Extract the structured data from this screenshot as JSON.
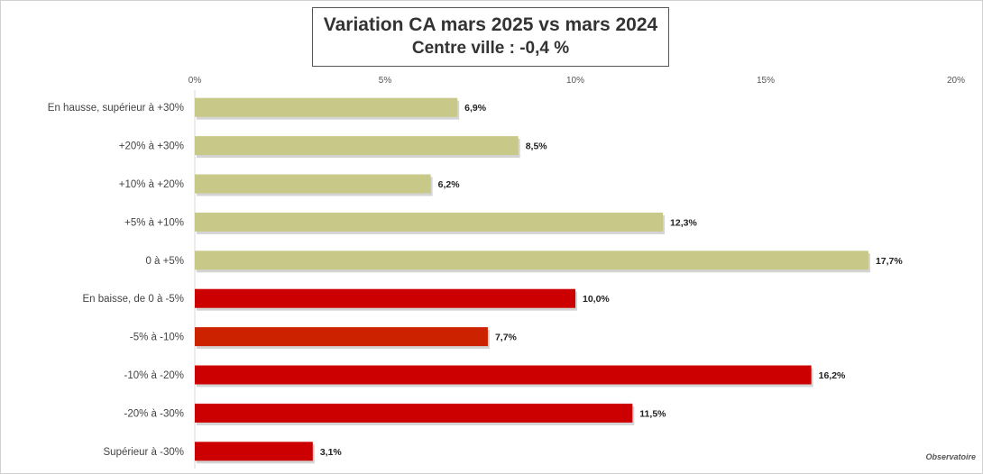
{
  "title": {
    "line1": "Variation CA  mars 2025 vs mars 2024",
    "line2": "Centre ville  : -0,4 %"
  },
  "watermark": "Observatoire",
  "chart_data": {
    "type": "bar",
    "orientation": "horizontal",
    "categories": [
      "En hausse, supérieur à +30%",
      "+20% à +30%",
      "+10% à +20%",
      "+5% à +10%",
      "0 à +5%",
      "En baisse, de 0 à -5%",
      "-5% à -10%",
      "-10% à -20%",
      "-20% à -30%",
      "Supérieur à -30%"
    ],
    "values": [
      6.9,
      8.5,
      6.2,
      12.3,
      17.7,
      10.0,
      7.7,
      16.2,
      11.5,
      3.1
    ],
    "value_labels": [
      "6,9%",
      "8,5%",
      "6,2%",
      "12,3%",
      "17,7%",
      "10,0%",
      "7,7%",
      "16,2%",
      "11,5%",
      "3,1%"
    ],
    "colors": [
      "#c8c888",
      "#c8c888",
      "#c8c888",
      "#c8c888",
      "#c8c888",
      "#cc0000",
      "#cc2200",
      "#cc0000",
      "#cc0000",
      "#cc0000"
    ],
    "xlim": [
      0,
      20
    ],
    "x_ticks": [
      0,
      5,
      10,
      15,
      20
    ],
    "x_tick_labels": [
      "0%",
      "5%",
      "10%",
      "15%",
      "20%"
    ],
    "axis_position": "top",
    "grid": false,
    "legend": "none"
  }
}
